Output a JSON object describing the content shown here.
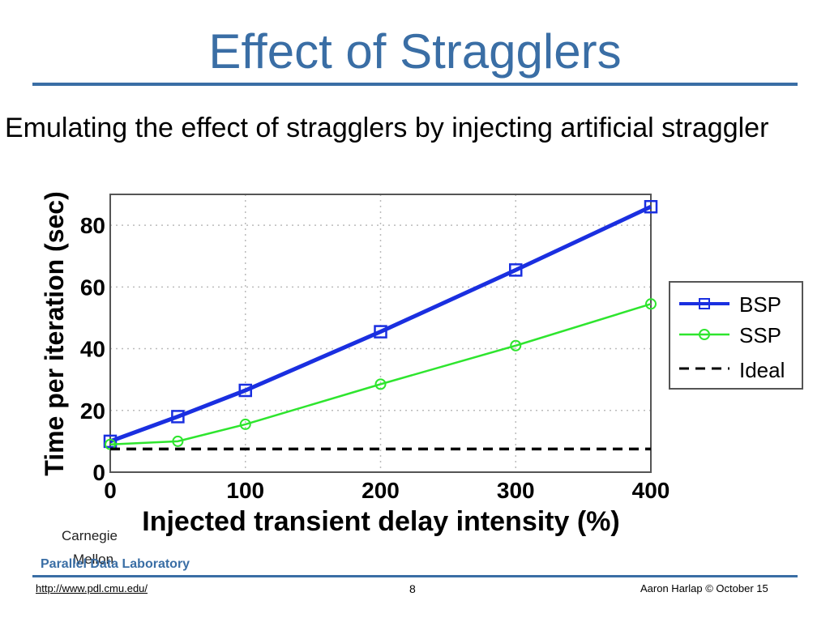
{
  "slide": {
    "title": "Effect of Stragglers",
    "subtitle": "Emulating the effect of stragglers by injecting artificial straggler",
    "footer": {
      "cmu_line1": "Carnegie",
      "cmu_line2": "Mellon",
      "lab": "Parallel Data Laboratory",
      "url": "http://www.pdl.cmu.edu/",
      "page": "8",
      "author": "Aaron Harlap © October 15"
    },
    "colors": {
      "title": "#3a6ea5",
      "bsp": "#1a2fe0",
      "ssp": "#2ee52e",
      "ideal": "#000000"
    }
  },
  "chart_data": {
    "type": "line",
    "xlabel": "Injected transient delay intensity (%)",
    "ylabel": "Time per iteration (sec)",
    "xlim": [
      0,
      400
    ],
    "ylim": [
      0,
      90
    ],
    "xticks": [
      0,
      100,
      200,
      300,
      400
    ],
    "yticks": [
      0,
      20,
      40,
      60,
      80
    ],
    "grid": true,
    "legend_position": "right",
    "series": [
      {
        "name": "BSP",
        "marker": "square",
        "color": "#1a2fe0",
        "x": [
          0,
          50,
          100,
          200,
          300,
          400
        ],
        "y": [
          10,
          18,
          26.5,
          45.5,
          65.5,
          86
        ]
      },
      {
        "name": "SSP",
        "marker": "circle",
        "color": "#2ee52e",
        "x": [
          0,
          50,
          100,
          200,
          300,
          400
        ],
        "y": [
          9,
          10,
          15.5,
          28.5,
          41,
          54.5
        ]
      },
      {
        "name": "Ideal",
        "marker": "none",
        "color": "#000000",
        "dash": true,
        "x": [
          0,
          400
        ],
        "y": [
          7.5,
          7.5
        ]
      }
    ]
  }
}
